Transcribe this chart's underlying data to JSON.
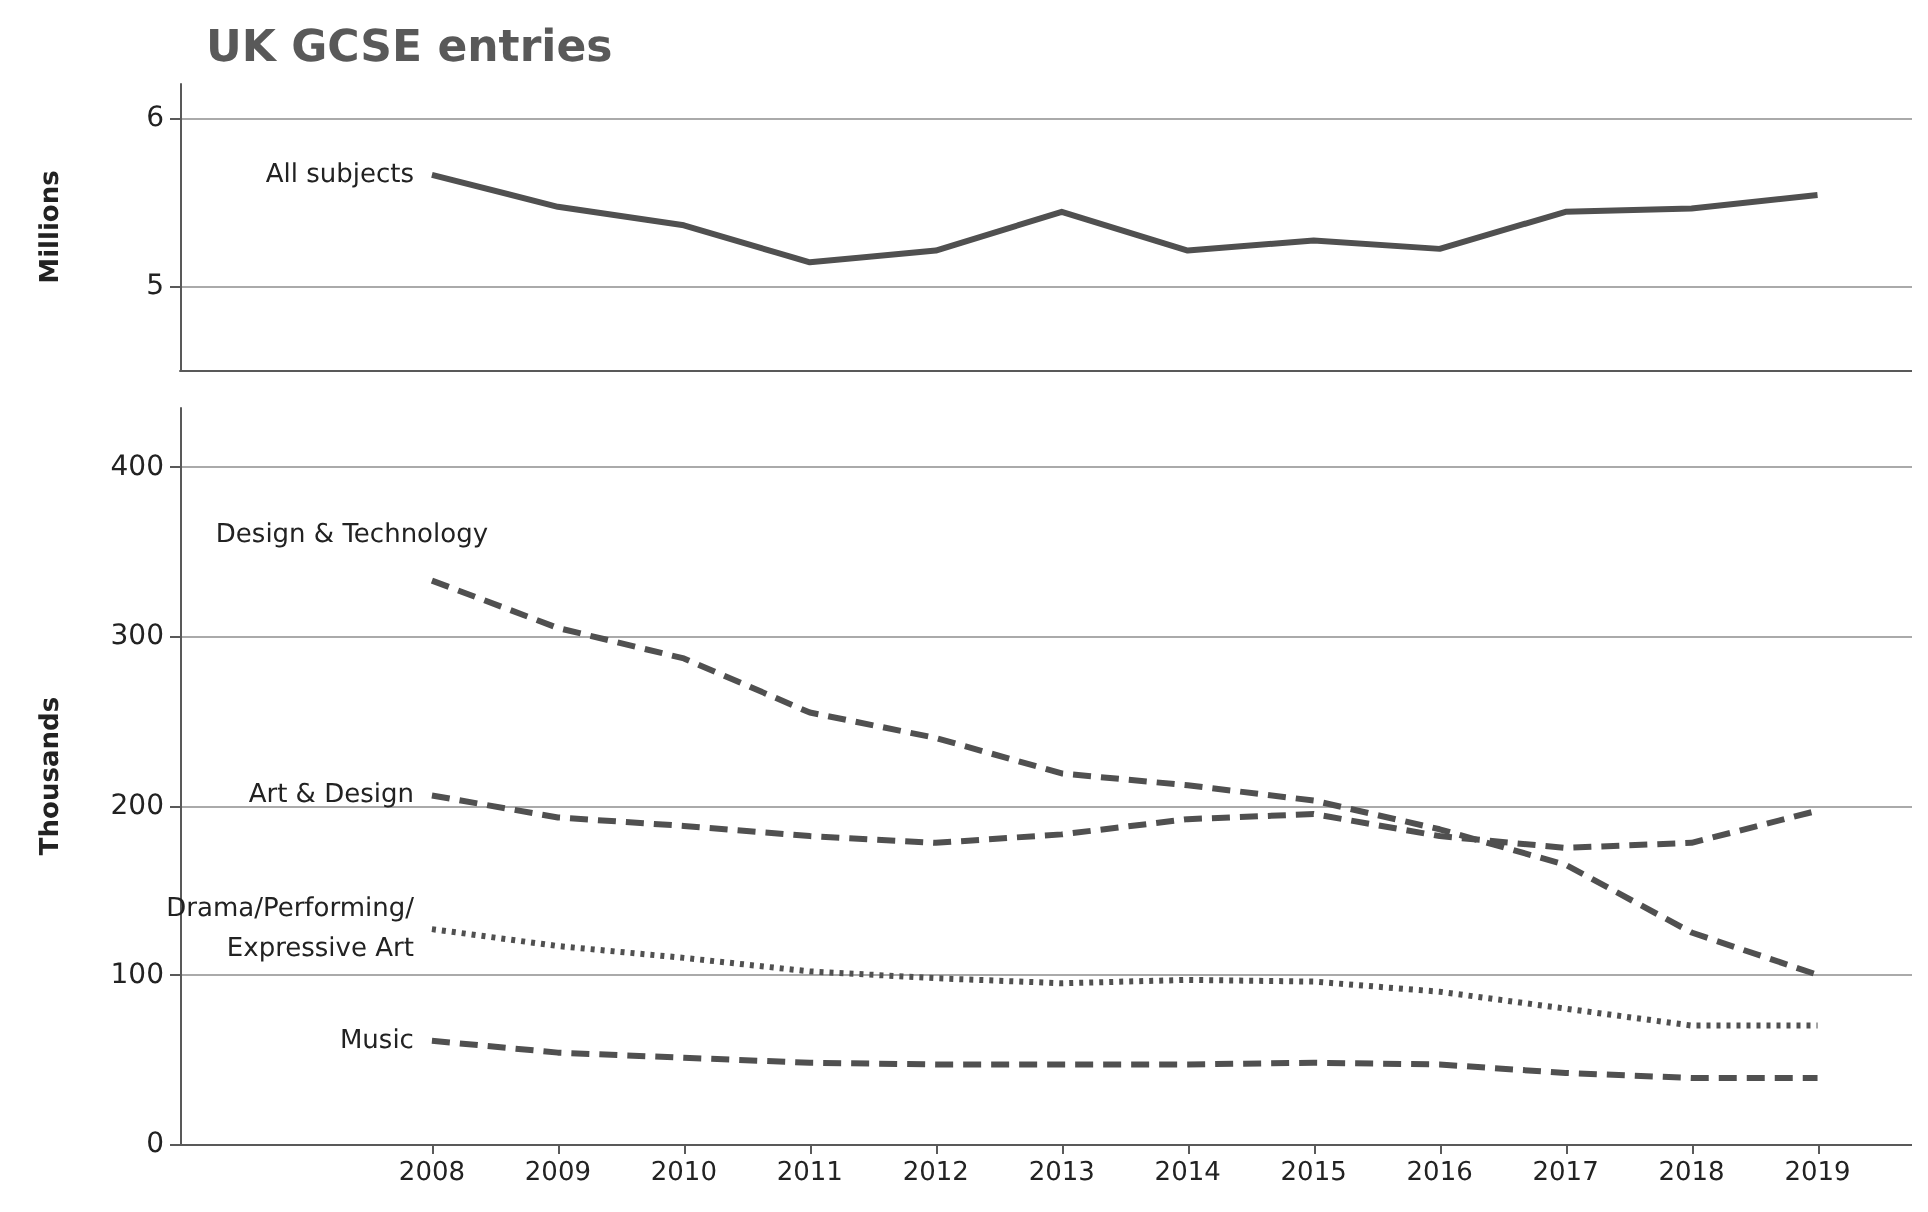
{
  "chart_data": [
    {
      "type": "line",
      "title": "UK GCSE entries",
      "ylabel": "Millions",
      "x": [
        2008,
        2009,
        2010,
        2011,
        2012,
        2013,
        2014,
        2015,
        2016,
        2017,
        2018,
        2019
      ],
      "xlim": [
        2006,
        2019.75
      ],
      "xticks": [
        2008,
        2009,
        2010,
        2011,
        2012,
        2013,
        2014,
        2015,
        2016,
        2017,
        2018,
        2019
      ],
      "ylim": [
        4.5,
        6.2
      ],
      "yticks": [
        5,
        6
      ],
      "grid": "y",
      "tick_labels": "y",
      "legend": false,
      "series": [
        {
          "name": "All subjects",
          "color": "#505050",
          "line_style": "solid",
          "values": [
            5.66,
            5.47,
            5.36,
            5.14,
            5.21,
            5.44,
            5.21,
            5.27,
            5.22,
            5.44,
            5.46,
            5.54
          ]
        }
      ]
    },
    {
      "type": "line",
      "ylabel": "Thousands",
      "x": [
        2008,
        2009,
        2010,
        2011,
        2012,
        2013,
        2014,
        2015,
        2016,
        2017,
        2018,
        2019
      ],
      "xlim": [
        2006,
        2019.75
      ],
      "xticks": [
        2008,
        2009,
        2010,
        2011,
        2012,
        2013,
        2014,
        2015,
        2016,
        2017,
        2018,
        2019
      ],
      "ylim": [
        0,
        435
      ],
      "yticks": [
        0,
        100,
        200,
        300,
        400
      ],
      "grid": "y",
      "legend": false,
      "series": [
        {
          "name": "Design & Technology",
          "color": "#505050",
          "line_style": "dashed",
          "values": [
            333,
            305,
            287,
            255,
            240,
            219,
            212,
            203,
            186,
            165,
            125,
            100
          ]
        },
        {
          "name": "Art & Design",
          "color": "#505050",
          "line_style": "dashed",
          "values": [
            206,
            193,
            188,
            182,
            178,
            183,
            192,
            195,
            182,
            175,
            178,
            197
          ]
        },
        {
          "name": "Drama/Performing/Expressive Art",
          "color": "#505050",
          "line_style": "dotted",
          "values": [
            127,
            117,
            110,
            102,
            98,
            95,
            97,
            96,
            90,
            80,
            70,
            70
          ]
        },
        {
          "name": "Music",
          "color": "#505050",
          "line_style": "dashed",
          "values": [
            61,
            54,
            51,
            48,
            47,
            47,
            47,
            48,
            47,
            42,
            39,
            39
          ]
        }
      ]
    }
  ]
}
